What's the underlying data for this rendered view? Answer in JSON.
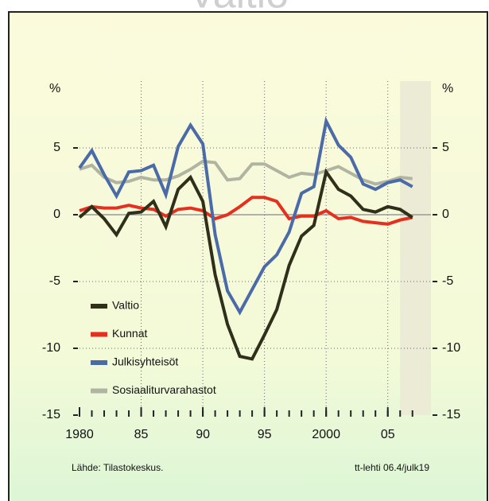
{
  "chart_data": {
    "type": "line",
    "title": "Valtio",
    "y_label": "%",
    "x": [
      1980,
      1981,
      1982,
      1983,
      1984,
      1985,
      1986,
      1987,
      1988,
      1989,
      1990,
      1991,
      1992,
      1993,
      1994,
      1995,
      1996,
      1997,
      1998,
      1999,
      2000,
      2001,
      2002,
      2003,
      2004,
      2005,
      2006,
      2007
    ],
    "series": [
      {
        "name": "Valtio",
        "color": "#2f2f1a",
        "values": [
          -0.2,
          0.6,
          -0.3,
          -1.5,
          0.1,
          0.2,
          1.0,
          -0.9,
          1.9,
          2.8,
          1.0,
          -4.5,
          -8.2,
          -10.6,
          -10.8,
          -9.0,
          -7.1,
          -3.8,
          -1.6,
          -0.8,
          3.2,
          1.9,
          1.4,
          0.4,
          0.2,
          0.6,
          0.4,
          -0.2
        ]
      },
      {
        "name": "Kunnat",
        "color": "#e53020",
        "values": [
          0.3,
          0.6,
          0.5,
          0.5,
          0.7,
          0.5,
          0.4,
          -0.1,
          0.4,
          0.5,
          0.3,
          -0.3,
          0.0,
          0.6,
          1.3,
          1.3,
          1.0,
          -0.3,
          -0.1,
          -0.1,
          0.3,
          -0.3,
          -0.2,
          -0.5,
          -0.6,
          -0.7,
          -0.4,
          -0.2
        ]
      },
      {
        "name": "Julkisyhteisöt",
        "color": "#4a6aa8",
        "values": [
          3.5,
          4.8,
          3.0,
          1.4,
          3.2,
          3.3,
          3.7,
          1.5,
          5.1,
          6.7,
          5.3,
          -1.5,
          -5.7,
          -7.3,
          -5.6,
          -3.9,
          -3.0,
          -1.3,
          1.6,
          2.1,
          7.0,
          5.2,
          4.3,
          2.3,
          1.9,
          2.4,
          2.6,
          2.1
        ]
      },
      {
        "name": "Sosiaaliturvarahastot",
        "color": "#b0b4a0",
        "values": [
          3.4,
          3.7,
          2.8,
          2.4,
          2.5,
          2.8,
          2.6,
          2.6,
          2.9,
          3.4,
          4.0,
          3.9,
          2.6,
          2.7,
          3.8,
          3.8,
          3.3,
          2.8,
          3.1,
          3.0,
          3.3,
          3.6,
          3.1,
          2.6,
          2.3,
          2.5,
          2.8,
          2.7
        ]
      }
    ],
    "xlim": [
      1980,
      2008.5
    ],
    "xticks": [
      1980,
      {
        "value": 1985,
        "label": "85"
      },
      {
        "value": 1990,
        "label": "90"
      },
      {
        "value": 1995,
        "label": "95"
      },
      2000,
      {
        "value": 2005,
        "label": "05"
      }
    ],
    "ylim": [
      -15,
      10
    ],
    "yticks": [
      5,
      0,
      -5,
      -10,
      -15
    ],
    "shade_from": 2006,
    "grid": true,
    "legend": "lower left",
    "source": "Lähde:  Tilastokeskus.",
    "credit": "tt-lehti 06.4/julk19"
  }
}
